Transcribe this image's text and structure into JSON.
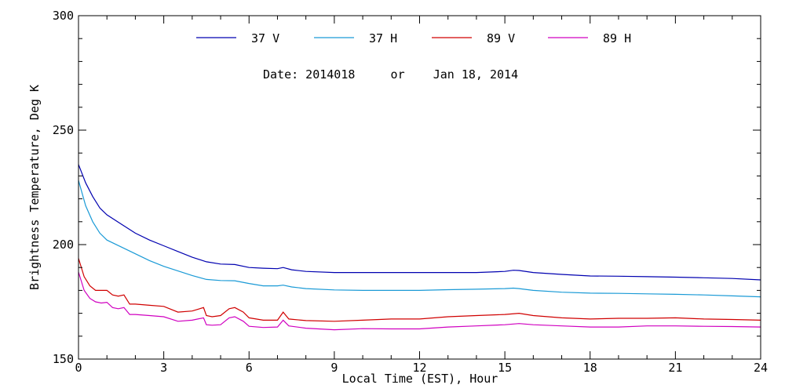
{
  "chart_data": {
    "type": "line",
    "title": "",
    "annotation": "Date: 2014018     or    Jan 18, 2014",
    "xlabel": "Local Time (EST), Hour",
    "ylabel": "Brightness Temperature, Deg K",
    "xlim": [
      0,
      24
    ],
    "ylim": [
      150,
      300
    ],
    "x_ticks": [
      0,
      3,
      6,
      9,
      12,
      15,
      18,
      21,
      24
    ],
    "y_ticks": [
      150,
      200,
      250,
      300
    ],
    "grid": false,
    "legend_position": "top",
    "series": [
      {
        "name": "37 V",
        "color": "#0000b0",
        "x": [
          0,
          0.25,
          0.5,
          0.75,
          1,
          1.5,
          2,
          2.5,
          3,
          3.5,
          4,
          4.5,
          5,
          5.5,
          6,
          6.5,
          7,
          7.2,
          7.5,
          8,
          9,
          10,
          11,
          12,
          13,
          14,
          15,
          15.3,
          15.5,
          16,
          17,
          18,
          19,
          20,
          21,
          22,
          23,
          24
        ],
        "y": [
          235,
          227,
          221,
          216,
          213,
          209,
          205,
          202,
          199.5,
          197,
          194.5,
          192.5,
          191.5,
          191.3,
          190,
          189.7,
          189.5,
          190,
          189,
          188.3,
          187.8,
          187.8,
          187.8,
          187.8,
          187.8,
          187.8,
          188.3,
          188.8,
          188.7,
          187.8,
          187,
          186.3,
          186.2,
          186,
          185.8,
          185.5,
          185.2,
          184.6
        ]
      },
      {
        "name": "37 H",
        "color": "#1a9ad6",
        "x": [
          0,
          0.25,
          0.5,
          0.75,
          1,
          1.5,
          2,
          2.5,
          3,
          3.5,
          4,
          4.5,
          5,
          5.5,
          6,
          6.5,
          7,
          7.2,
          7.5,
          8,
          9,
          10,
          11,
          12,
          13,
          14,
          15,
          15.3,
          15.5,
          16,
          17,
          18,
          19,
          20,
          21,
          22,
          23,
          24
        ],
        "y": [
          228,
          217,
          210,
          205,
          202,
          199,
          196,
          193,
          190.5,
          188.5,
          186.5,
          184.8,
          184.3,
          184.2,
          183,
          182,
          182,
          182.3,
          181.5,
          180.8,
          180.2,
          180,
          180,
          180,
          180.3,
          180.5,
          180.8,
          181,
          180.8,
          180,
          179.2,
          178.8,
          178.7,
          178.5,
          178.3,
          178,
          177.6,
          177.2
        ]
      },
      {
        "name": "89 V",
        "color": "#d00000",
        "x": [
          0,
          0.2,
          0.4,
          0.6,
          0.8,
          1,
          1.2,
          1.4,
          1.6,
          1.8,
          2,
          2.5,
          3,
          3.5,
          4,
          4.4,
          4.5,
          4.7,
          5,
          5.3,
          5.5,
          5.8,
          6,
          6.5,
          7,
          7.2,
          7.4,
          8,
          9,
          10,
          11,
          12,
          13,
          14,
          15,
          15.5,
          16,
          17,
          18,
          19,
          20,
          21,
          22,
          23,
          24
        ],
        "y": [
          194,
          186,
          182,
          180,
          180,
          180,
          178,
          177.5,
          178,
          174,
          174,
          173.5,
          173,
          170.5,
          171,
          172.5,
          169,
          168.5,
          169,
          172,
          172.5,
          170.5,
          168,
          167,
          167,
          170.5,
          167.5,
          166.8,
          166.5,
          167,
          167.5,
          167.5,
          168.5,
          169,
          169.5,
          170,
          169,
          168,
          167.5,
          167.8,
          167.8,
          168,
          167.5,
          167.3,
          167
        ]
      },
      {
        "name": "89 H",
        "color": "#d000c0",
        "x": [
          0,
          0.2,
          0.4,
          0.6,
          0.8,
          1,
          1.2,
          1.4,
          1.6,
          1.8,
          2,
          2.5,
          3,
          3.5,
          4,
          4.4,
          4.5,
          4.7,
          5,
          5.3,
          5.5,
          5.8,
          6,
          6.5,
          7,
          7.2,
          7.4,
          8,
          9,
          10,
          11,
          12,
          13,
          14,
          15,
          15.5,
          16,
          17,
          18,
          19,
          20,
          21,
          22,
          23,
          24
        ],
        "y": [
          188,
          180,
          176.5,
          175,
          174.5,
          174.8,
          172.5,
          172,
          172.5,
          169.5,
          169.5,
          169,
          168.5,
          166.5,
          167,
          168,
          165,
          164.8,
          165,
          168,
          168.5,
          166.5,
          164.3,
          163.8,
          164,
          167,
          164.5,
          163.5,
          162.8,
          163.3,
          163.2,
          163.2,
          164,
          164.5,
          165,
          165.5,
          165,
          164.5,
          164,
          164,
          164.5,
          164.5,
          164.3,
          164.2,
          164
        ]
      }
    ]
  }
}
